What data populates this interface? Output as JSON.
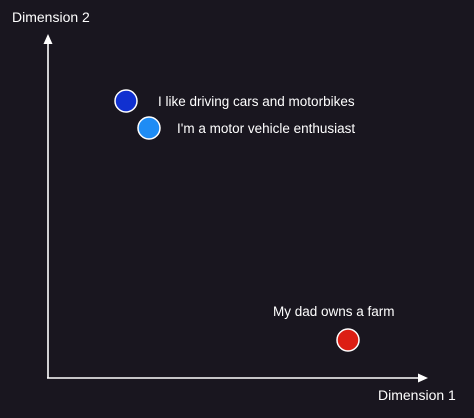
{
  "background_color": "#19161f",
  "axes": {
    "x_label": "Dimension 1",
    "y_label": "Dimension 2",
    "color": "#ffffff"
  },
  "points": [
    {
      "id": "driving",
      "label": "I like driving cars and motorbikes",
      "color": "#1030d0"
    },
    {
      "id": "enthusiast",
      "label": "I'm a motor vehicle enthusiast",
      "color": "#1e8cf5"
    },
    {
      "id": "farm",
      "label": "My dad owns a farm",
      "color": "#dc1e14"
    }
  ]
}
